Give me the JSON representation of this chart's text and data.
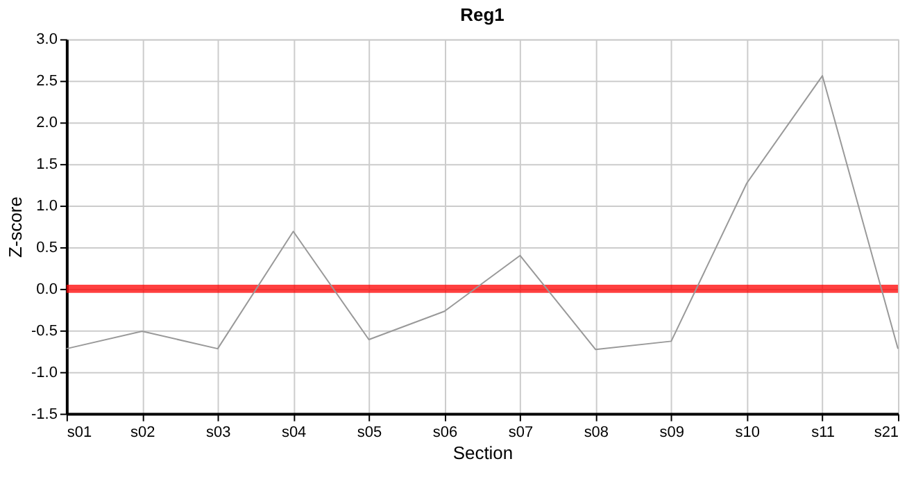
{
  "chart_data": {
    "type": "line",
    "title": "Reg1",
    "xlabel": "Section",
    "ylabel": "Z-score",
    "categories": [
      "s01",
      "s02",
      "s03",
      "s04",
      "s05",
      "s06",
      "s07",
      "s08",
      "s09",
      "s10",
      "s11",
      "s21"
    ],
    "series": [
      {
        "color": "#999999",
        "values": [
          -0.72,
          -0.51,
          -0.72,
          0.69,
          -0.61,
          -0.27,
          0.4,
          -0.73,
          -0.63,
          1.27,
          2.56,
          -0.72
        ]
      }
    ],
    "ylim": [
      -1.5,
      3.0
    ],
    "yticks": [
      {
        "value": -1.5,
        "label": "-1.5"
      },
      {
        "value": -1,
        "label": "-1.0"
      },
      {
        "value": -0.5,
        "label": "-0.5"
      },
      {
        "value": 0,
        "label": "0.0"
      },
      {
        "value": 0.5,
        "label": "0.5"
      },
      {
        "value": 1,
        "label": "1.0"
      },
      {
        "value": 1.5,
        "label": "1.5"
      },
      {
        "value": 2,
        "label": "2.0"
      },
      {
        "value": 2.5,
        "label": "2.5"
      },
      {
        "value": 3,
        "label": "3.0"
      }
    ],
    "ref_lines": [
      {
        "axis": "y",
        "value": 0,
        "color": "#ff0000"
      }
    ],
    "grid": true,
    "legend": false,
    "marker": "none",
    "line_style": "solid"
  }
}
